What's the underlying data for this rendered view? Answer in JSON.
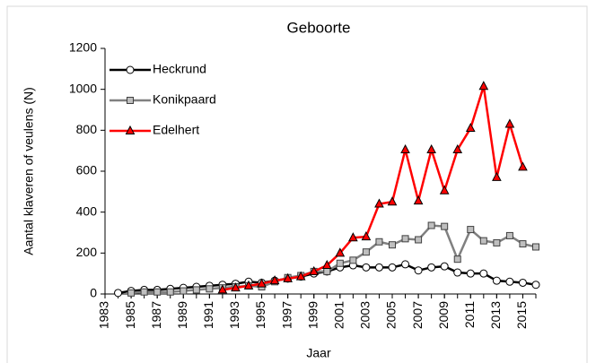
{
  "chart_data": {
    "type": "line",
    "title": "Geboorte",
    "x_label": "Jaar",
    "y_label": "Aantal klaveren of veulens (N)",
    "x": [
      1983,
      1984,
      1985,
      1986,
      1987,
      1988,
      1989,
      1990,
      1991,
      1992,
      1993,
      1994,
      1995,
      1996,
      1997,
      1998,
      1999,
      2000,
      2001,
      2002,
      2003,
      2004,
      2005,
      2006,
      2007,
      2008,
      2009,
      2010,
      2011,
      2012,
      2013,
      2014,
      2015,
      2016
    ],
    "xlim": [
      1983,
      2016
    ],
    "xticks": [
      1983,
      1985,
      1987,
      1989,
      1991,
      1993,
      1995,
      1997,
      1999,
      2001,
      2003,
      2005,
      2007,
      2009,
      2011,
      2013,
      2015
    ],
    "ylim": [
      0,
      1200
    ],
    "yticks": [
      0,
      200,
      400,
      600,
      800,
      1000,
      1200
    ],
    "grid": false,
    "legend": "upper left",
    "series": [
      {
        "name": "Heckrund",
        "color": "#000000",
        "marker": "circle",
        "values": [
          null,
          5,
          15,
          20,
          20,
          25,
          30,
          35,
          40,
          45,
          50,
          60,
          55,
          65,
          75,
          85,
          100,
          110,
          130,
          140,
          130,
          130,
          130,
          145,
          115,
          130,
          135,
          105,
          100,
          100,
          65,
          60,
          55,
          45
        ]
      },
      {
        "name": "Konikpaard",
        "color": "#808080",
        "marker": "square",
        "values": [
          null,
          null,
          5,
          10,
          10,
          10,
          15,
          20,
          25,
          30,
          35,
          40,
          35,
          60,
          80,
          90,
          110,
          110,
          150,
          165,
          205,
          255,
          240,
          270,
          265,
          335,
          330,
          170,
          315,
          260,
          250,
          285,
          245,
          230
        ]
      },
      {
        "name": "Edelhert",
        "color": "#ff0000",
        "marker": "triangle",
        "values": [
          null,
          null,
          null,
          null,
          null,
          null,
          null,
          null,
          null,
          20,
          30,
          40,
          50,
          65,
          75,
          85,
          110,
          140,
          200,
          275,
          280,
          440,
          450,
          705,
          455,
          705,
          505,
          705,
          810,
          1015,
          570,
          830,
          620,
          null
        ]
      }
    ]
  }
}
